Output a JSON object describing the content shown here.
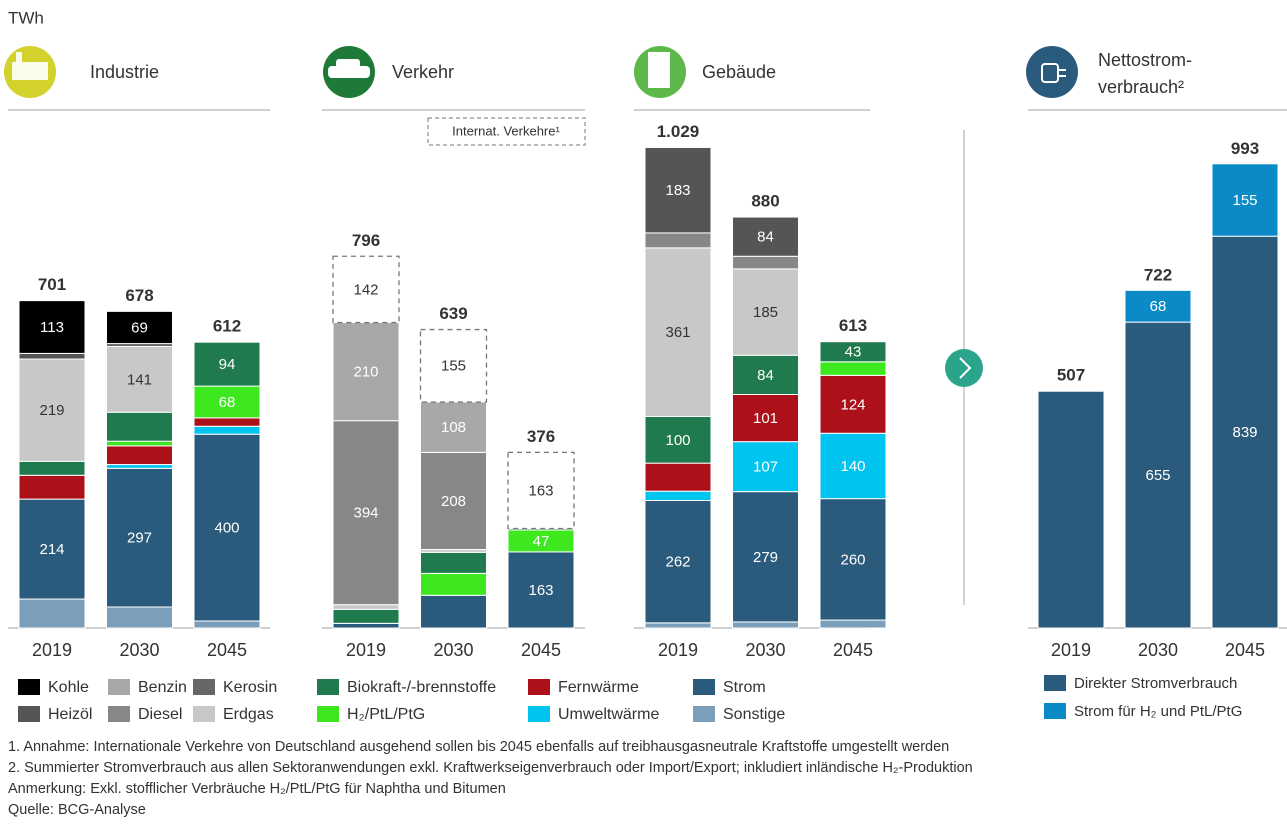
{
  "unit": "TWh",
  "chart_data": [
    {
      "type": "bar",
      "stacked": true,
      "panels": [
        {
          "title": "Industrie"
        },
        {
          "title": "Verkehr"
        },
        {
          "title": "Gebäude"
        }
      ],
      "categories": [
        "2019",
        "2030",
        "2045",
        "2019",
        "2030",
        "2045",
        "2019",
        "2030",
        "2045"
      ],
      "series": [
        {
          "name": "Sonstige",
          "color": "#7b9fba",
          "values": [
            62,
            45,
            15,
            null,
            null,
            null,
            11,
            13,
            17
          ],
          "labeled": [
            false,
            false,
            false,
            false,
            false,
            false,
            false,
            false,
            false
          ]
        },
        {
          "name": "Strom",
          "color": "#2a5a7c",
          "values": [
            214,
            297,
            400,
            10,
            70,
            163,
            262,
            279,
            260
          ],
          "labeled": [
            true,
            true,
            true,
            false,
            false,
            true,
            true,
            true,
            true
          ]
        },
        {
          "name": "Umweltwärme",
          "color": "#00c4f0",
          "values": [
            null,
            8,
            17,
            null,
            null,
            null,
            20,
            107,
            140
          ],
          "labeled": [
            false,
            false,
            false,
            false,
            false,
            false,
            false,
            true,
            true
          ]
        },
        {
          "name": "Fernwärme",
          "color": "#ac1119",
          "values": [
            51,
            40,
            18,
            null,
            null,
            null,
            60,
            101,
            124
          ],
          "labeled": [
            false,
            false,
            false,
            false,
            false,
            false,
            false,
            true,
            true
          ]
        },
        {
          "name": "H₂/PtL/PtG",
          "color": "#3ee81f",
          "values": [
            null,
            10,
            68,
            null,
            47,
            47,
            null,
            null,
            29
          ],
          "labeled": [
            false,
            false,
            true,
            false,
            false,
            true,
            false,
            false,
            false
          ]
        },
        {
          "name": "Biokraft-/-brennstoffe",
          "color": "#1f7a4d",
          "values": [
            30,
            62,
            94,
            30,
            45,
            3,
            100,
            84,
            43
          ],
          "labeled": [
            false,
            false,
            true,
            false,
            false,
            false,
            true,
            true,
            true
          ]
        },
        {
          "name": "Erdgas",
          "color": "#c8c8c8",
          "label_color": "#333333",
          "values": [
            219,
            141,
            null,
            10,
            6,
            null,
            361,
            185,
            null
          ],
          "labeled": [
            true,
            true,
            false,
            false,
            false,
            false,
            true,
            true,
            false
          ]
        },
        {
          "name": "Kerosin",
          "color": "#666666",
          "values": [
            null,
            null,
            null,
            null,
            null,
            null,
            null,
            null,
            null
          ],
          "labeled": [
            false,
            false,
            false,
            false,
            false,
            false,
            false,
            false,
            false
          ]
        },
        {
          "name": "Diesel",
          "color": "#878787",
          "values": [
            null,
            null,
            null,
            394,
            208,
            null,
            32,
            27,
            null
          ],
          "labeled": [
            false,
            false,
            false,
            true,
            true,
            false,
            false,
            false,
            false
          ]
        },
        {
          "name": "Benzin",
          "color": "#a8a8a8",
          "values": [
            null,
            null,
            null,
            210,
            108,
            null,
            null,
            null,
            null
          ],
          "labeled": [
            false,
            false,
            false,
            true,
            true,
            false,
            false,
            false,
            false
          ]
        },
        {
          "name": "Heizöl",
          "color": "#555555",
          "values": [
            12,
            6,
            null,
            null,
            null,
            null,
            183,
            84,
            null
          ],
          "labeled": [
            false,
            false,
            false,
            false,
            false,
            false,
            true,
            true,
            false
          ]
        },
        {
          "name": "Kohle",
          "color": "#000000",
          "values": [
            113,
            69,
            null,
            null,
            null,
            null,
            null,
            null,
            null
          ],
          "labeled": [
            true,
            true,
            false,
            false,
            false,
            false,
            false,
            false,
            false
          ]
        },
        {
          "name": "Internat. Verkehre¹",
          "color": "#ffffff",
          "label_color": "#333333",
          "dashed": true,
          "values": [
            null,
            null,
            null,
            142,
            155,
            163,
            null,
            null,
            null
          ],
          "labeled": [
            false,
            false,
            false,
            true,
            true,
            true,
            false,
            false,
            false
          ]
        }
      ],
      "totals": [
        701,
        678,
        612,
        796,
        639,
        376,
        {
          "value": 1029,
          "label": "1.029"
        },
        880,
        613
      ]
    },
    {
      "type": "bar",
      "stacked": true,
      "title_lines": [
        "Nettostrom-",
        "verbrauch²"
      ],
      "categories": [
        "2019",
        "2030",
        "2045"
      ],
      "series": [
        {
          "name": "Direkter Stromverbrauch",
          "color": "#2a5a7c",
          "values": [
            507,
            655,
            839
          ],
          "labeled": [
            false,
            true,
            true
          ]
        },
        {
          "name": "Strom für H₂ und PtL/PtG",
          "color": "#0a8bc8",
          "values": [
            null,
            68,
            155
          ],
          "labeled": [
            false,
            true,
            true
          ]
        }
      ],
      "totals": [
        507,
        722,
        993
      ]
    }
  ],
  "footnotes": [
    "1. Annahme: Internationale Verkehre von Deutschland ausgehend sollen bis 2045 ebenfalls auf treibhausgasneutrale Kraftstoffe umgestellt werden",
    "2. Summierter Stromverbrauch aus allen Sektoranwendungen exkl. Kraftwerkseigenverbrauch oder Import/Export; inkludiert inländische H₂-Produktion",
    "Anmerkung: Exkl. stofflicher Verbräuche H₂/PtL/PtG für Naphtha und Bitumen",
    "Quelle: BCG-Analyse"
  ]
}
